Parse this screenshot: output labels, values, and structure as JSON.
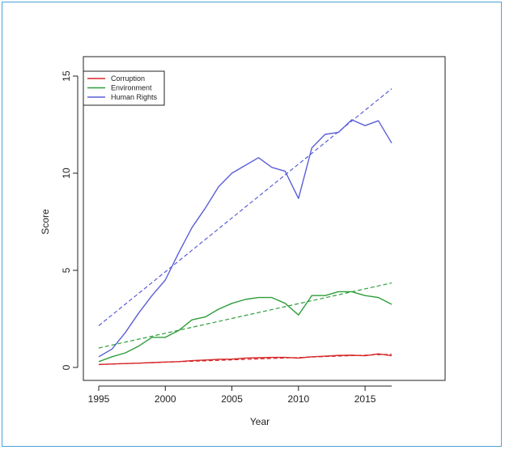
{
  "colors": {
    "frame_border": "#4aa3d9",
    "corruption": "#d62728",
    "environment": "#2e9e3a",
    "human_rights": "#5b5fd6"
  },
  "chart_data": {
    "type": "line",
    "xlabel": "Year",
    "ylabel": "Score",
    "xlim": [
      1995,
      2017
    ],
    "ylim": [
      0,
      15
    ],
    "x_ticks": [
      1995,
      2000,
      2005,
      2010,
      2015
    ],
    "y_ticks": [
      0,
      5,
      10,
      15
    ],
    "grid": false,
    "legend_position": "top-left",
    "x": [
      1995,
      1996,
      1997,
      1998,
      1999,
      2000,
      2001,
      2002,
      2003,
      2004,
      2005,
      2006,
      2007,
      2008,
      2009,
      2010,
      2011,
      2012,
      2013,
      2014,
      2015,
      2016,
      2017
    ],
    "series": [
      {
        "name": "Corruption",
        "color_key": "corruption",
        "values": [
          0.15,
          0.18,
          0.2,
          0.22,
          0.25,
          0.28,
          0.3,
          0.35,
          0.38,
          0.42,
          0.43,
          0.48,
          0.5,
          0.52,
          0.52,
          0.48,
          0.55,
          0.58,
          0.62,
          0.63,
          0.6,
          0.7,
          0.6
        ],
        "trend": [
          0.15,
          0.68
        ]
      },
      {
        "name": "Environment",
        "color_key": "environment",
        "values": [
          0.3,
          0.55,
          0.75,
          1.1,
          1.55,
          1.55,
          1.9,
          2.45,
          2.6,
          3.0,
          3.3,
          3.5,
          3.6,
          3.6,
          3.3,
          2.7,
          3.7,
          3.7,
          3.9,
          3.9,
          3.7,
          3.6,
          3.25
        ],
        "trend": [
          1.0,
          4.35
        ]
      },
      {
        "name": "Human Rights",
        "color_key": "human_rights",
        "values": [
          0.55,
          0.95,
          1.8,
          2.8,
          3.7,
          4.5,
          5.9,
          7.2,
          8.2,
          9.3,
          10.0,
          10.4,
          10.8,
          10.3,
          10.1,
          8.7,
          11.3,
          12.0,
          12.1,
          12.75,
          12.45,
          12.7,
          11.55
        ],
        "trend": [
          2.15,
          14.35
        ]
      }
    ]
  }
}
